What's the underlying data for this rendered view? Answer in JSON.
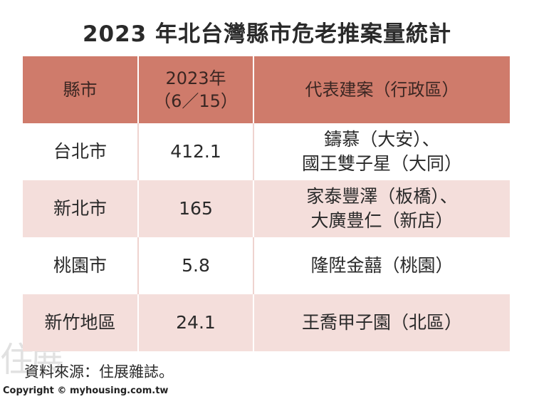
{
  "chart_data": {
    "type": "table",
    "title": "2023 年北台灣縣市危老推案量統計",
    "columns": [
      {
        "line1": "縣市",
        "line2": ""
      },
      {
        "line1": "2023年",
        "line2": "（6／15）"
      },
      {
        "line1": "代表建案（行政區）",
        "line2": ""
      }
    ],
    "rows": [
      {
        "county": "台北市",
        "value": "412.1",
        "projects": [
          "鑄慕（大安）、",
          "國王雙子星（大同）"
        ]
      },
      {
        "county": "新北市",
        "value": "165",
        "projects": [
          "家泰豐澤（板橋）、",
          "大廣豊仁（新店）"
        ]
      },
      {
        "county": "桃園市",
        "value": "5.8",
        "projects": [
          "隆陞金囍（桃園）",
          ""
        ]
      },
      {
        "county": "新竹地區",
        "value": "24.1",
        "projects": [
          "王喬甲子園（北區）",
          ""
        ]
      }
    ]
  },
  "source": "資料來源：住展雜誌。",
  "copyright": "Copyright © myhousing.com.tw",
  "watermark": "住展"
}
